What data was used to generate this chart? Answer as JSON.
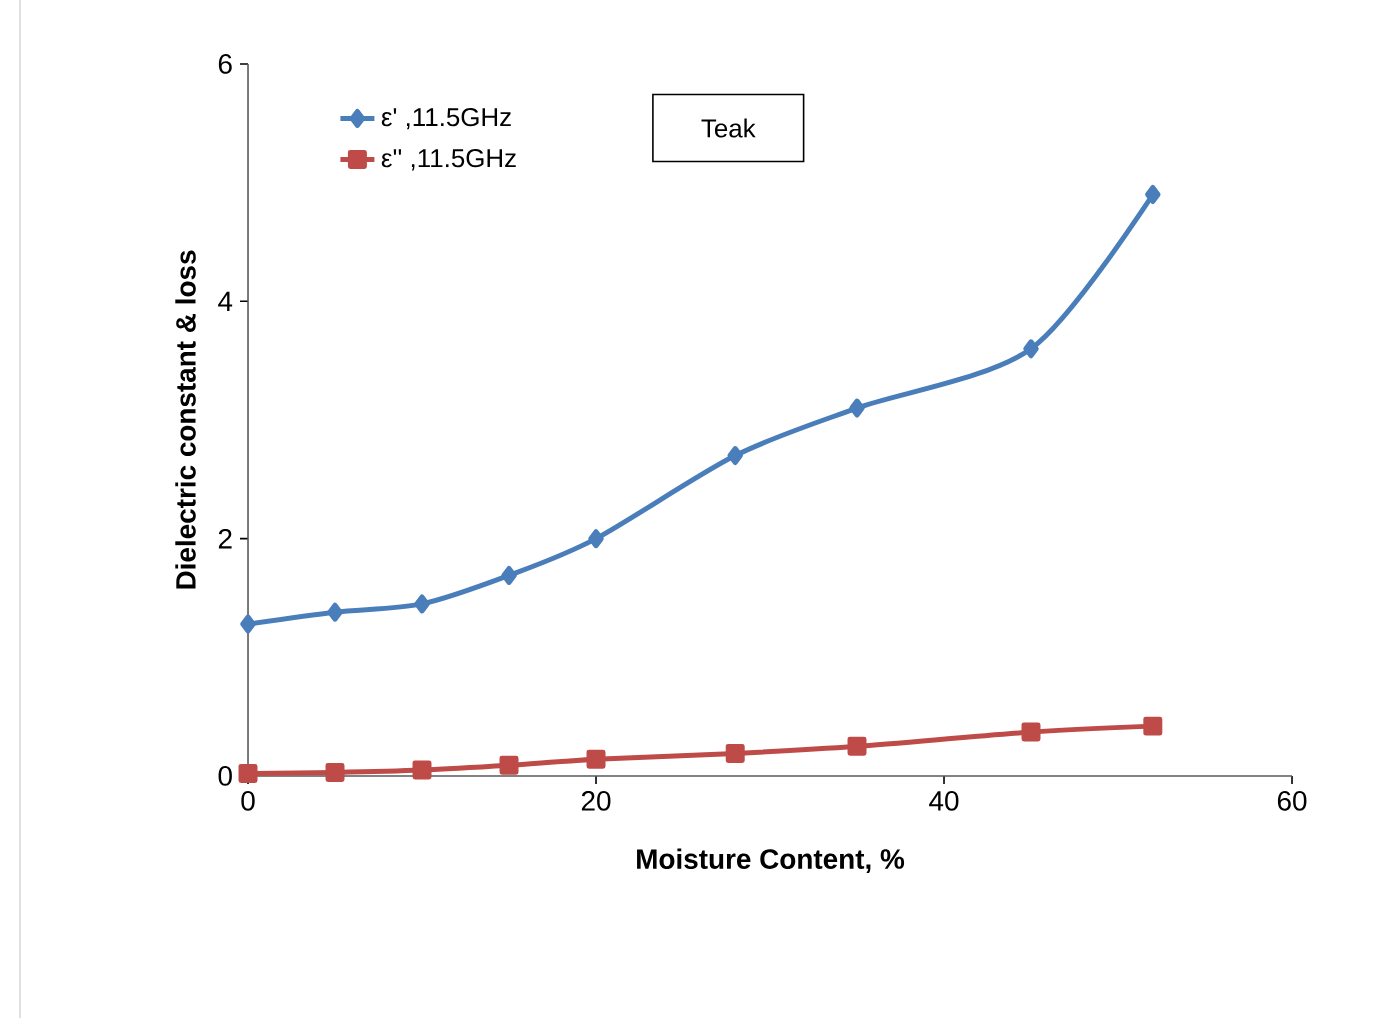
{
  "chart_data": {
    "type": "line",
    "xlabel": "Moisture Content,  %",
    "ylabel": "Dielectric constant & loss",
    "x": [
      0,
      5,
      10,
      15,
      20,
      28,
      35,
      45,
      52
    ],
    "series": [
      {
        "name": "ε' ,11.5GHz",
        "color": "#4a7ebb",
        "marker": "diamond",
        "values": [
          1.28,
          1.38,
          1.45,
          1.69,
          2.0,
          2.7,
          3.1,
          3.6,
          4.9
        ]
      },
      {
        "name": "ε'' ,11.5GHz",
        "color": "#be4b48",
        "marker": "square",
        "values": [
          0.02,
          0.03,
          0.05,
          0.09,
          0.14,
          0.19,
          0.25,
          0.37,
          0.42
        ]
      }
    ],
    "annotations": [
      "Teak"
    ],
    "xlim": [
      0,
      60
    ],
    "ylim": [
      0,
      6
    ],
    "xticks": [
      0,
      20,
      40,
      60
    ],
    "yticks": [
      0,
      2,
      4,
      6
    ],
    "legend": "top left",
    "grid": false
  }
}
